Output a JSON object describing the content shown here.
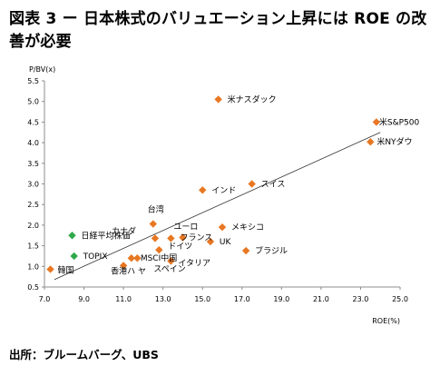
{
  "page": {
    "title": "図表 3 ー 日本株式のバリュエーション上昇には ROE の改善が必要",
    "source": "出所：ブルームバーグ、UBS"
  },
  "chart_data": {
    "type": "scatter",
    "xlabel": "ROE(%)",
    "ylabel": "P/BV(x)",
    "xlim": [
      7.0,
      25.0
    ],
    "ylim": [
      0.5,
      5.5
    ],
    "xticks": [
      "7.0",
      "9.0",
      "11.0",
      "13.0",
      "15.0",
      "17.0",
      "19.0",
      "21.0",
      "23.0",
      "25.0"
    ],
    "xtick_values": [
      7,
      9,
      11,
      13,
      15,
      17,
      19,
      21,
      23,
      25
    ],
    "yticks": [
      "0.5",
      "1.0",
      "1.5",
      "2.0",
      "2.5",
      "3.0",
      "3.5",
      "4.0",
      "4.5",
      "5.0",
      "5.5"
    ],
    "ytick_values": [
      0.5,
      1.0,
      1.5,
      2.0,
      2.5,
      3.0,
      3.5,
      4.0,
      4.5,
      5.0,
      5.5
    ],
    "grid": false,
    "trendline": {
      "x": [
        7.5,
        24.0
      ],
      "y": [
        0.68,
        4.25
      ]
    },
    "points": [
      {
        "label": "米ナスダック",
        "x": 15.8,
        "y": 5.05,
        "color": "#E87722"
      },
      {
        "label": "米S&P500",
        "x": 23.8,
        "y": 4.5,
        "color": "#E87722"
      },
      {
        "label": "米NYダウ",
        "x": 23.5,
        "y": 4.02,
        "color": "#E87722"
      },
      {
        "label": "スイス",
        "x": 17.5,
        "y": 3.0,
        "color": "#E87722"
      },
      {
        "label": "インド",
        "x": 15.0,
        "y": 2.85,
        "color": "#E87722"
      },
      {
        "label": "メキシコ",
        "x": 16.0,
        "y": 1.95,
        "color": "#E87722"
      },
      {
        "label": "台湾",
        "x": 12.5,
        "y": 2.03,
        "color": "#E87722"
      },
      {
        "label": "カナダ",
        "x": 12.6,
        "y": 1.68,
        "color": "#E87722"
      },
      {
        "label": "ユーロ",
        "x": 13.4,
        "y": 1.68,
        "color": "#E87722"
      },
      {
        "label": "フランス",
        "x": 14.0,
        "y": 1.7,
        "color": "#E87722"
      },
      {
        "label": "UK",
        "x": 15.4,
        "y": 1.6,
        "color": "#E87722"
      },
      {
        "label": "ブラジル",
        "x": 17.2,
        "y": 1.38,
        "color": "#E87722"
      },
      {
        "label": "ドイツ",
        "x": 12.8,
        "y": 1.4,
        "color": "#E87722"
      },
      {
        "label": "MSCI中国",
        "x": 11.4,
        "y": 1.2,
        "color": "#E87722"
      },
      {
        "label": "イタリア",
        "x": 13.4,
        "y": 1.13,
        "color": "#E87722"
      },
      {
        "label": "香港",
        "x": 11.0,
        "y": 1.02,
        "color": "#E87722"
      },
      {
        "label": "スペイン",
        "x": 11.7,
        "y": 1.2,
        "color": "#E87722"
      },
      {
        "label": "韓国",
        "x": 7.3,
        "y": 0.93,
        "color": "#E87722"
      },
      {
        "label": "日経平均株価",
        "x": 8.4,
        "y": 1.75,
        "color": "#2EA84A"
      },
      {
        "label": "TOPIX",
        "x": 8.5,
        "y": 1.25,
        "color": "#2EA84A"
      }
    ],
    "label_texts": [
      {
        "text": "米ナスダック",
        "series_color": "#E87722"
      },
      {
        "text": "米S&P500",
        "series_color": "#E87722"
      },
      {
        "text": "米NYダウ",
        "series_color": "#E87722"
      },
      {
        "text": "スイス",
        "series_color": "#E87722"
      },
      {
        "text": "インド",
        "series_color": "#E87722"
      },
      {
        "text": "メキシコ",
        "series_color": "#E87722"
      },
      {
        "text": "台湾",
        "series_color": "#E87722"
      },
      {
        "text": "カナダ",
        "series_color": "#E87722"
      },
      {
        "text": "ユーロ",
        "series_color": "#E87722"
      },
      {
        "text": "フランス",
        "series_color": "#E87722"
      },
      {
        "text": "UK",
        "series_color": "#E87722"
      },
      {
        "text": "ブラジル",
        "series_color": "#E87722"
      },
      {
        "text": "ドイツ",
        "series_color": "#E87722"
      },
      {
        "text": "MSCI中国",
        "series_color": "#E87722"
      },
      {
        "text": "イタリア",
        "series_color": "#E87722"
      },
      {
        "text": "香港ハ ヤ",
        "series_color": "#E87722"
      },
      {
        "text": "スペイン",
        "series_color": "#E87722"
      },
      {
        "text": "韓国",
        "series_color": "#E87722"
      },
      {
        "text": "日経平均株価",
        "series_color": "#2EA84A"
      },
      {
        "text": "TOPIX",
        "series_color": "#2EA84A"
      }
    ]
  }
}
